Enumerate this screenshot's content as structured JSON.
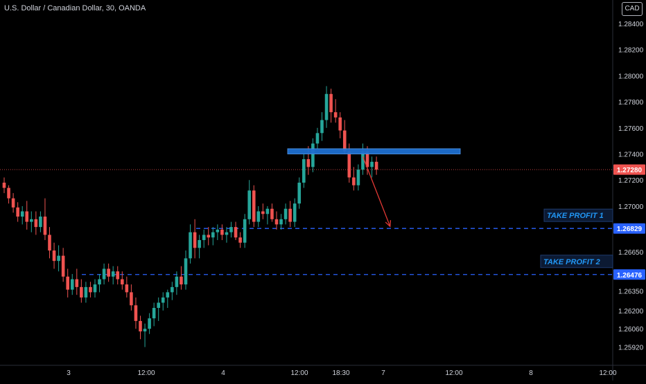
{
  "chart_title": "U.S. Dollar / Canadian Dollar, 30, OANDA",
  "currency": "CAD",
  "colors": {
    "background": "#000000",
    "up": "#26a69a",
    "down": "#ef5350",
    "resistance_zone": "#1e6fd0",
    "take_profit_line": "#2962ff",
    "arrow": "#e53935",
    "current_price_line": "#ef5350",
    "axis_text": "#d1d4dc"
  },
  "chart_data": {
    "type": "candlestick",
    "title": "U.S. Dollar / Canadian Dollar, 30, OANDA",
    "ylim": [
      1.2578,
      1.2858
    ],
    "y_ticks": [
      "1.28400",
      "1.28200",
      "1.28000",
      "1.27800",
      "1.27600",
      "1.27400",
      "1.27200",
      "1.27000",
      "1.26650",
      "1.26350",
      "1.26200",
      "1.26060",
      "1.25920"
    ],
    "x_ticks": [
      "3",
      "12:00",
      "4",
      "12:00",
      "18:30",
      "7",
      "12:00",
      "8",
      "12:00"
    ],
    "current_price": 1.2728,
    "current_price_label": "1.27280",
    "resistance_zone": {
      "low": 1.274,
      "high": 1.2744
    },
    "take_profit_1": {
      "label": "TAKE PROFIT 1",
      "price": 1.26829,
      "price_label": "1.26829"
    },
    "take_profit_2": {
      "label": "TAKE PROFIT 2",
      "price": 1.26476,
      "price_label": "1.26476"
    },
    "candles": [
      [
        1.2718,
        1.2722,
        1.271,
        1.2714
      ],
      [
        1.2714,
        1.2716,
        1.2702,
        1.2706
      ],
      [
        1.2706,
        1.271,
        1.2695,
        1.2699
      ],
      [
        1.2699,
        1.2703,
        1.2688,
        1.2692
      ],
      [
        1.2692,
        1.27,
        1.2686,
        1.2696
      ],
      [
        1.2696,
        1.2704,
        1.2682,
        1.2688
      ],
      [
        1.2688,
        1.2696,
        1.268,
        1.269
      ],
      [
        1.269,
        1.2696,
        1.2678,
        1.2684
      ],
      [
        1.2684,
        1.2696,
        1.268,
        1.2692
      ],
      [
        1.2692,
        1.2706,
        1.2674,
        1.2678
      ],
      [
        1.2678,
        1.2684,
        1.266,
        1.2666
      ],
      [
        1.2666,
        1.2672,
        1.2652,
        1.2658
      ],
      [
        1.2658,
        1.267,
        1.265,
        1.2662
      ],
      [
        1.2662,
        1.2668,
        1.2642,
        1.2646
      ],
      [
        1.2646,
        1.2652,
        1.263,
        1.2636
      ],
      [
        1.2636,
        1.2648,
        1.2632,
        1.2644
      ],
      [
        1.2644,
        1.2652,
        1.2632,
        1.2638
      ],
      [
        1.2638,
        1.2644,
        1.2626,
        1.263
      ],
      [
        1.263,
        1.2642,
        1.2626,
        1.2638
      ],
      [
        1.2638,
        1.2642,
        1.263,
        1.2634
      ],
      [
        1.2634,
        1.2644,
        1.263,
        1.264
      ],
      [
        1.264,
        1.2648,
        1.2634,
        1.2644
      ],
      [
        1.2644,
        1.2656,
        1.264,
        1.2652
      ],
      [
        1.2652,
        1.2656,
        1.2642,
        1.2646
      ],
      [
        1.2646,
        1.2654,
        1.264,
        1.265
      ],
      [
        1.265,
        1.2654,
        1.264,
        1.2644
      ],
      [
        1.2644,
        1.265,
        1.2636,
        1.264
      ],
      [
        1.264,
        1.2646,
        1.263,
        1.2634
      ],
      [
        1.2634,
        1.264,
        1.262,
        1.2624
      ],
      [
        1.2624,
        1.263,
        1.2606,
        1.2612
      ],
      [
        1.2612,
        1.2616,
        1.2598,
        1.2604
      ],
      [
        1.2604,
        1.261,
        1.2592,
        1.2606
      ],
      [
        1.2606,
        1.2618,
        1.2602,
        1.2614
      ],
      [
        1.2614,
        1.2626,
        1.2608,
        1.2622
      ],
      [
        1.2622,
        1.263,
        1.2612,
        1.2626
      ],
      [
        1.2626,
        1.2634,
        1.262,
        1.263
      ],
      [
        1.263,
        1.2636,
        1.2622,
        1.2634
      ],
      [
        1.2634,
        1.2642,
        1.2628,
        1.2638
      ],
      [
        1.2638,
        1.265,
        1.2632,
        1.2646
      ],
      [
        1.2646,
        1.2654,
        1.2636,
        1.264
      ],
      [
        1.264,
        1.2666,
        1.2636,
        1.266
      ],
      [
        1.266,
        1.2686,
        1.2656,
        1.268
      ],
      [
        1.268,
        1.269,
        1.266,
        1.2668
      ],
      [
        1.2668,
        1.2678,
        1.266,
        1.2674
      ],
      [
        1.2674,
        1.2682,
        1.2668,
        1.2678
      ],
      [
        1.2678,
        1.2684,
        1.267,
        1.2676
      ],
      [
        1.2676,
        1.2684,
        1.267,
        1.268
      ],
      [
        1.268,
        1.2686,
        1.2674,
        1.2682
      ],
      [
        1.2682,
        1.2686,
        1.2674,
        1.2678
      ],
      [
        1.2678,
        1.2684,
        1.2672,
        1.268
      ],
      [
        1.268,
        1.2688,
        1.2676,
        1.2684
      ],
      [
        1.2684,
        1.2688,
        1.2674,
        1.2676
      ],
      [
        1.2676,
        1.268,
        1.2668,
        1.2672
      ],
      [
        1.2672,
        1.2694,
        1.2668,
        1.269
      ],
      [
        1.269,
        1.272,
        1.2686,
        1.2712
      ],
      [
        1.2712,
        1.2716,
        1.2684,
        1.2688
      ],
      [
        1.2688,
        1.27,
        1.2684,
        1.2696
      ],
      [
        1.2696,
        1.2702,
        1.269,
        1.2694
      ],
      [
        1.2694,
        1.27,
        1.2686,
        1.2698
      ],
      [
        1.2698,
        1.2702,
        1.2688,
        1.269
      ],
      [
        1.269,
        1.2696,
        1.2682,
        1.2686
      ],
      [
        1.2686,
        1.2694,
        1.2682,
        1.269
      ],
      [
        1.269,
        1.2702,
        1.2686,
        1.2698
      ],
      [
        1.2698,
        1.2704,
        1.2684,
        1.2688
      ],
      [
        1.2688,
        1.2706,
        1.2684,
        1.2702
      ],
      [
        1.2702,
        1.2722,
        1.2698,
        1.2718
      ],
      [
        1.2718,
        1.274,
        1.2714,
        1.2736
      ],
      [
        1.2736,
        1.2746,
        1.2724,
        1.273
      ],
      [
        1.273,
        1.2752,
        1.2726,
        1.2748
      ],
      [
        1.2748,
        1.276,
        1.2744,
        1.2756
      ],
      [
        1.2756,
        1.2772,
        1.275,
        1.2766
      ],
      [
        1.2766,
        1.2792,
        1.276,
        1.2786
      ],
      [
        1.2786,
        1.279,
        1.2764,
        1.2772
      ],
      [
        1.2772,
        1.2782,
        1.2764,
        1.2768
      ],
      [
        1.2768,
        1.2772,
        1.2752,
        1.2758
      ],
      [
        1.2758,
        1.2766,
        1.274,
        1.2742
      ],
      [
        1.2742,
        1.2748,
        1.2718,
        1.2722
      ],
      [
        1.2722,
        1.273,
        1.2712,
        1.2716
      ],
      [
        1.2716,
        1.2732,
        1.2712,
        1.2728
      ],
      [
        1.2728,
        1.2748,
        1.2724,
        1.2742
      ],
      [
        1.2742,
        1.2746,
        1.2724,
        1.273
      ],
      [
        1.273,
        1.2738,
        1.2722,
        1.2734
      ],
      [
        1.2734,
        1.2738,
        1.2724,
        1.2728
      ]
    ],
    "arrow": {
      "from": [
        79,
        1.2738
      ],
      "to": [
        85,
        1.26829
      ]
    }
  }
}
